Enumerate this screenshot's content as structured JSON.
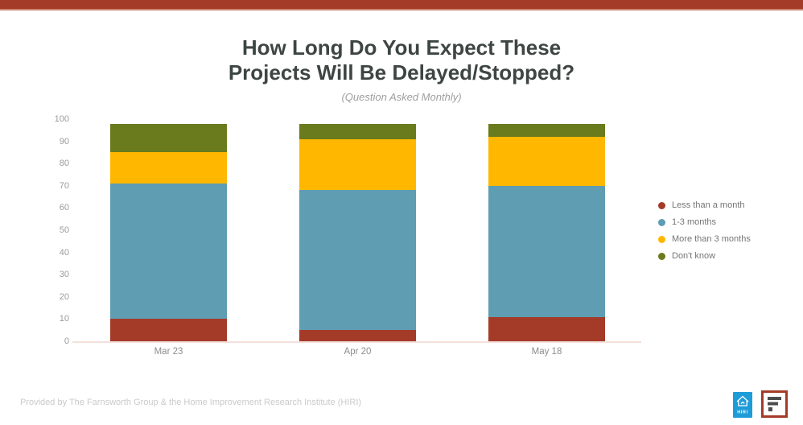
{
  "page": {
    "accent_color": "#A43A28"
  },
  "header": {
    "title": "How Long Do You Expect These Projects Will Be Delayed/Stopped?",
    "title_lines": [
      "How Long Do You Expect These",
      "Projects Will Be Delayed/Stopped?"
    ],
    "subtitle": "(Question Asked Monthly)"
  },
  "chart_data": {
    "type": "bar",
    "stacked": true,
    "title": "How Long Do You Expect These Projects Will Be Delayed/Stopped?",
    "subtitle": "(Question Asked Monthly)",
    "categories": [
      "Mar 23",
      "Apr 20",
      "May 18"
    ],
    "series": [
      {
        "name": "Less than a month",
        "color": "#A43A28",
        "values": [
          10,
          5,
          11
        ]
      },
      {
        "name": "1-3 months",
        "color": "#5F9DB2",
        "values": [
          61,
          63,
          59
        ]
      },
      {
        "name": "More than 3 months",
        "color": "#FFB700",
        "values": [
          14,
          23,
          22
        ]
      },
      {
        "name": "Don't know",
        "color": "#697B1D",
        "values": [
          13,
          7,
          6
        ]
      }
    ],
    "stack_totals": [
      98,
      98,
      98
    ],
    "ylim": [
      0,
      100
    ],
    "ytick_step": 10,
    "ytick_labels": [
      "0",
      "10",
      "20",
      "30",
      "40",
      "50",
      "60",
      "70",
      "80",
      "90",
      "100"
    ],
    "grid": false,
    "legend_position": "right"
  },
  "footer": {
    "attribution": "Provided by The Farnsworth Group & the Home Improvement Research Institute (HIRI)",
    "hiri_logo_label": "HIRI",
    "hiri_logo_color": "#1E9CD7",
    "farnsworth_logo_color": "#A43A28"
  }
}
